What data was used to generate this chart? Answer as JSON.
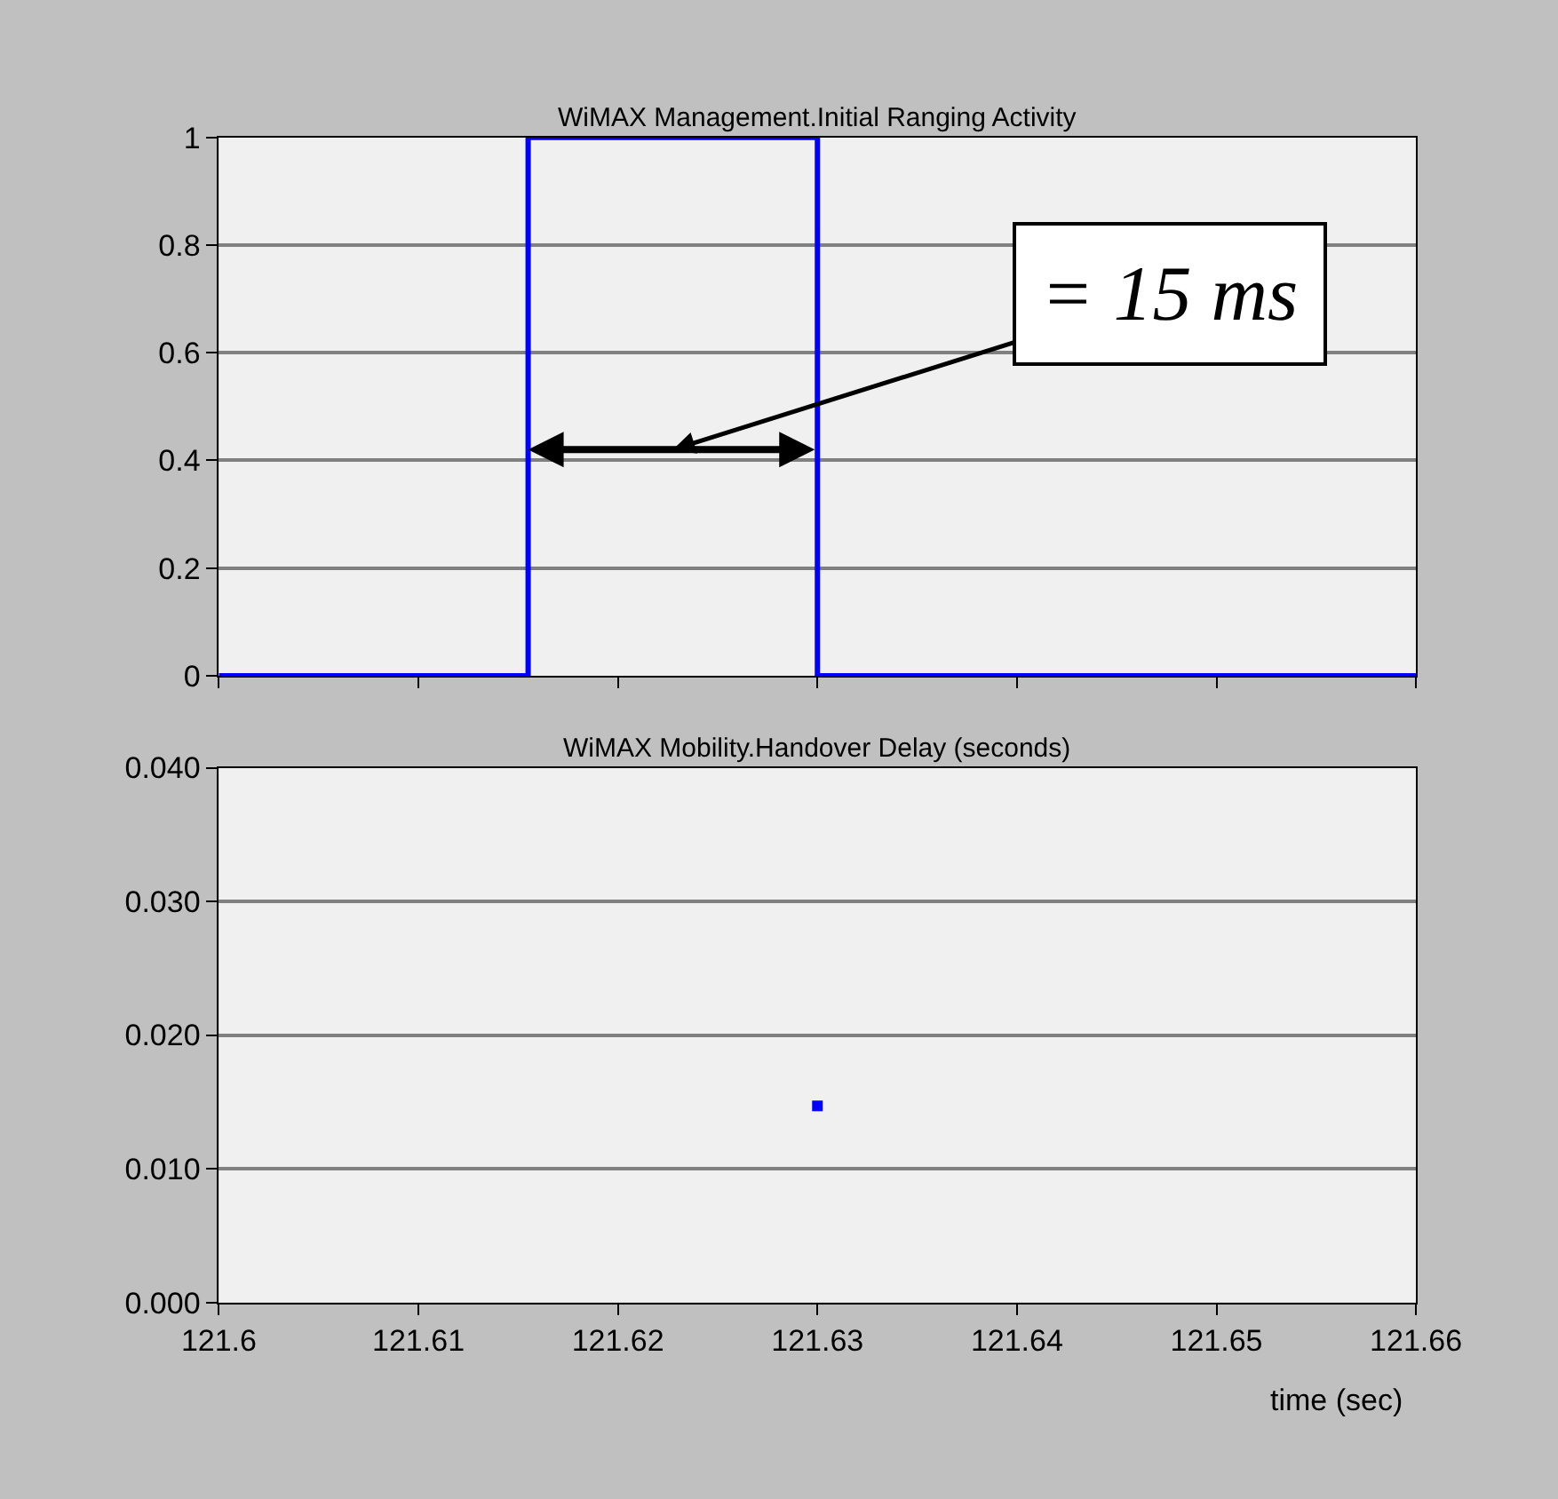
{
  "chart_data": [
    {
      "type": "step",
      "title": "WiMAX Management.Initial Ranging Activity",
      "series": [
        {
          "color": "#0000ff",
          "x": [
            121.6,
            121.6155,
            121.63,
            121.66
          ],
          "values": [
            0,
            1,
            0,
            0
          ]
        }
      ],
      "xlim": [
        121.6,
        121.66
      ],
      "xticks": [
        121.6,
        121.61,
        121.62,
        121.63,
        121.64,
        121.65,
        121.66
      ],
      "ylim": [
        0,
        1
      ],
      "yticks": [
        0,
        0.2,
        0.4,
        0.6,
        0.8,
        1
      ],
      "grid": "y",
      "tick_labels": "y",
      "marker": "none",
      "annotations": [
        "= 15 ms"
      ]
    },
    {
      "type": "scatter",
      "title": "WiMAX Mobility.Handover Delay (seconds)",
      "xlabel": "time (sec)",
      "series": [
        {
          "color": "#0000ff",
          "x": [
            121.63
          ],
          "values": [
            0.0147
          ]
        }
      ],
      "xlim": [
        121.6,
        121.66
      ],
      "xticks": [
        121.6,
        121.61,
        121.62,
        121.63,
        121.64,
        121.65,
        121.66
      ],
      "ylim": [
        0,
        0.04
      ],
      "yticks": [
        {
          "value": 0,
          "label": "0.000"
        },
        {
          "value": 0.01,
          "label": "0.010"
        },
        {
          "value": 0.02,
          "label": "0.020"
        },
        {
          "value": 0.03,
          "label": "0.030"
        },
        {
          "value": 0.04,
          "label": "0.040"
        }
      ],
      "grid": "y",
      "marker": "square"
    }
  ]
}
